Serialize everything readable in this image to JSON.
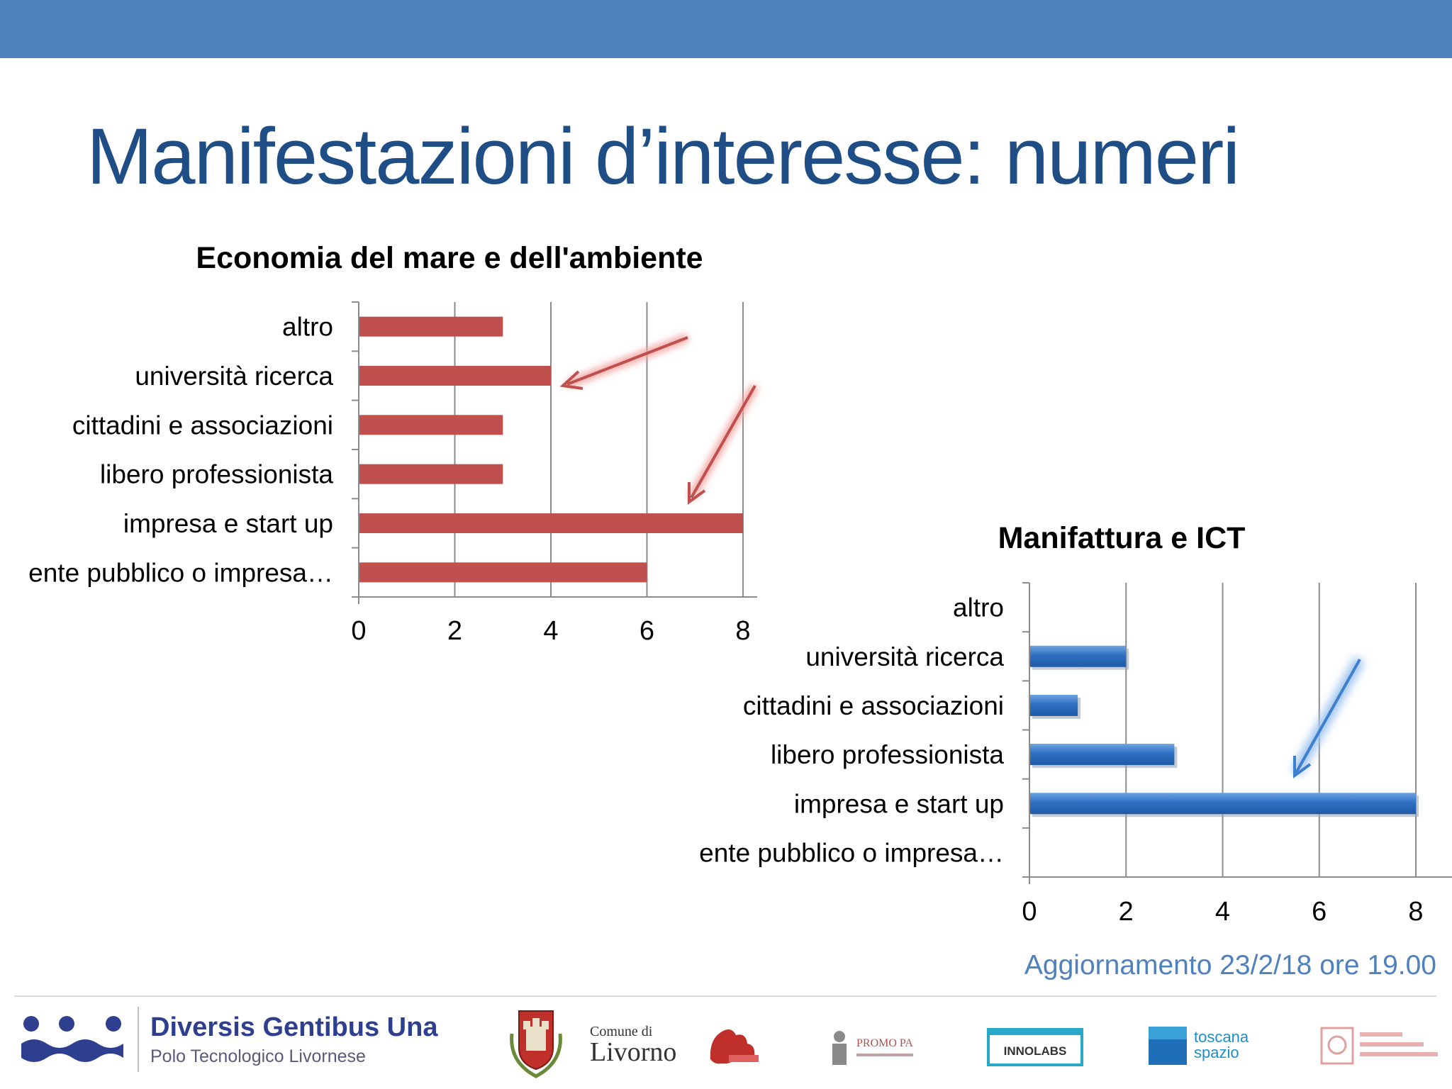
{
  "slide": {
    "title": "Manifestazioni d’interesse: numeri",
    "update_note": "Aggiornamento 23/2/18 ore 19.00",
    "accent_color": "#4f81bd",
    "title_color": "#1f4e86"
  },
  "chart_data": [
    {
      "type": "bar",
      "orientation": "horizontal",
      "title": "Economia del mare e dell'ambiente",
      "categories": [
        "altro",
        "università ricerca",
        "cittadini e associazioni",
        "libero professionista",
        "impresa e start up",
        "ente pubblico o impresa…"
      ],
      "values": [
        3,
        4,
        3,
        3,
        8,
        6
      ],
      "xlim": [
        0,
        8
      ],
      "xticks": [
        "0",
        "2",
        "4",
        "6",
        "8"
      ],
      "grid": true,
      "bar_color": "#c0504d",
      "annotations": [
        "arrow pointing to università ricerca",
        "arrow pointing to impresa e start up"
      ]
    },
    {
      "type": "bar",
      "orientation": "horizontal",
      "title": "Manifattura e ICT",
      "categories": [
        "altro",
        "università ricerca",
        "cittadini e associazioni",
        "libero professionista",
        "impresa e start up",
        "ente pubblico o impresa…"
      ],
      "values": [
        0,
        2,
        1,
        3,
        8,
        0
      ],
      "xlim": [
        0,
        8
      ],
      "xticks": [
        "0",
        "2",
        "4",
        "6",
        "8"
      ],
      "grid": true,
      "bar_color": "#2e6fc2",
      "annotations": [
        "arrow pointing to impresa e start up"
      ]
    }
  ],
  "footer": {
    "brand_name": "Diversis Gentibus Una",
    "brand_subtitle": "Polo Tecnologico Livornese",
    "comune_small": "Comune di",
    "comune_name": "Livorno",
    "partner_logos": [
      "dgu-logo",
      "livorno-crest-logo",
      "red-lion-logo",
      "promo-pa-logo",
      "innolabs-logo",
      "toscana-spazio-logo",
      "patto-logo"
    ],
    "innolabs_text": "INNOLABS",
    "toscana_text_1": "toscana",
    "toscana_text_2": "spazio",
    "promopa_text": "PROMO PA"
  }
}
